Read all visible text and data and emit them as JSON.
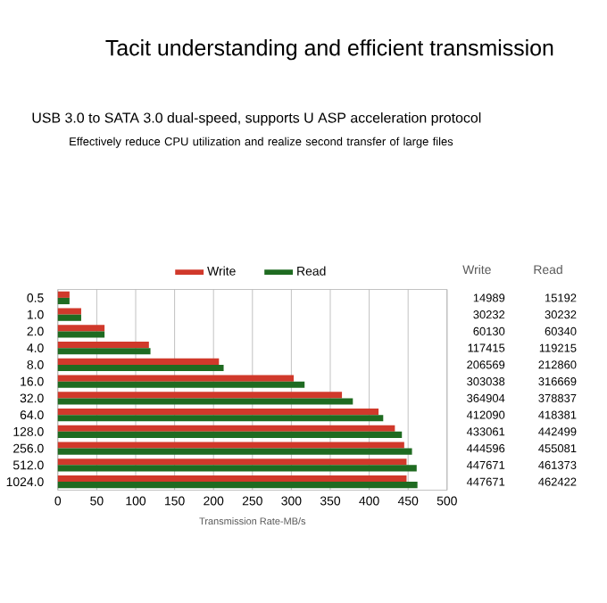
{
  "chart_data": {
    "type": "bar",
    "orientation": "horizontal",
    "title": "Tacit understanding and efficient transmission",
    "subtitle": "USB 3.0 to SATA 3.0 dual-speed, supports U ASP acceleration protocol",
    "annotations": [
      "Effectively reduce CPU utilization and realize second transfer of large files",
      "Write",
      "Read",
      "14989",
      "15192",
      "30232",
      "30232",
      "60130",
      "60340",
      "117415",
      "119215",
      "206569",
      "212860",
      "303038",
      "316669",
      "364904",
      "378837",
      "412090",
      "418381",
      "433061",
      "442499",
      "444596",
      "455081",
      "447671",
      "461373",
      "447671",
      "462422"
    ],
    "xlabel": "Transmission Rate-MB/s",
    "categories": [
      "0.5",
      "1.0",
      "2.0",
      "4.0",
      "8.0",
      "16.0",
      "32.0",
      "64.0",
      "128.0",
      "256.0",
      "512.0",
      "1024.0"
    ],
    "series": [
      {
        "name": "Write",
        "color": "#d0392b",
        "values": [
          15,
          30,
          60,
          117,
          207,
          303,
          365,
          412,
          433,
          445,
          448,
          448
        ]
      },
      {
        "name": "Read",
        "color": "#1f6b21",
        "values": [
          15,
          30,
          60,
          119,
          213,
          317,
          379,
          418,
          442,
          455,
          461,
          462
        ]
      }
    ],
    "xlim": [
      0,
      500
    ],
    "xticks": [
      0,
      50,
      100,
      150,
      200,
      250,
      300,
      350,
      400,
      450,
      500
    ],
    "grid": "x",
    "legend": "top"
  }
}
